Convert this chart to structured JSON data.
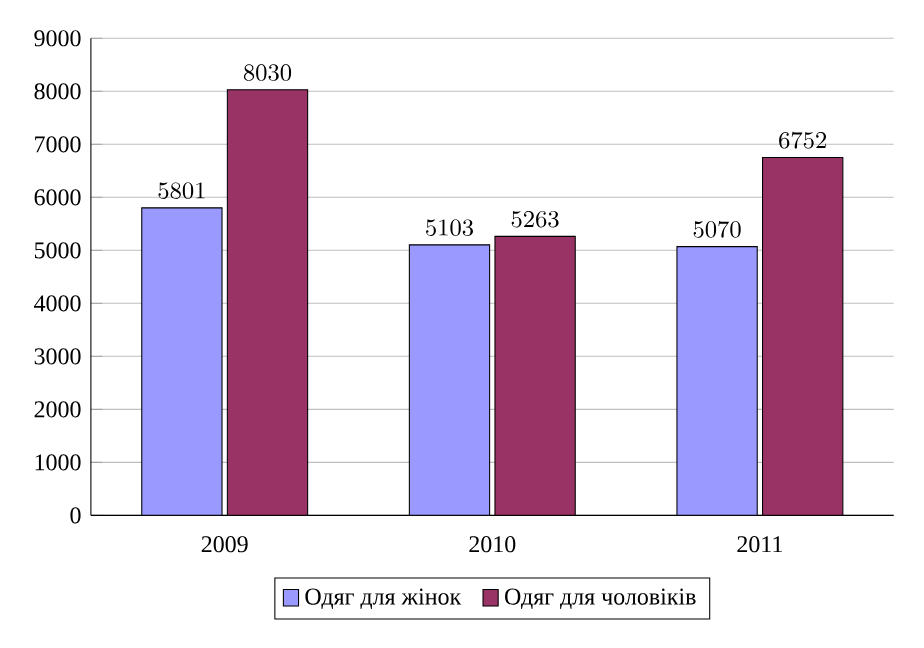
{
  "chart_data": {
    "type": "bar",
    "categories": [
      "2009",
      "2010",
      "2011"
    ],
    "series": [
      {
        "name": "Одяг для жінок",
        "color": "#9999ff",
        "values": [
          5801,
          5103,
          5070
        ]
      },
      {
        "name": "Одяг для чоловіків",
        "color": "#993366",
        "values": [
          8030,
          5263,
          6752
        ]
      }
    ],
    "ylim": [
      0,
      9000
    ],
    "yticks": [
      0,
      1000,
      2000,
      3000,
      4000,
      5000,
      6000,
      7000,
      8000,
      9000
    ],
    "grid": "y",
    "legend": "bottom",
    "data_labels": true
  }
}
